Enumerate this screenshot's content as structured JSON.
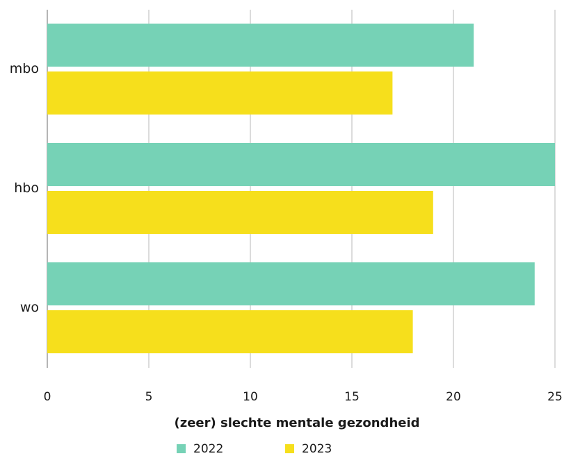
{
  "chart_data": {
    "type": "bar",
    "orientation": "horizontal",
    "categories": [
      "mbo",
      "hbo",
      "wo"
    ],
    "series": [
      {
        "name": "2022",
        "color": "#76d2b6",
        "values": [
          21,
          25,
          24
        ]
      },
      {
        "name": "2023",
        "color": "#f6df1c",
        "values": [
          17,
          19,
          18
        ]
      }
    ],
    "xlabel": "(zeer) slechte mentale gezondheid",
    "xlim": [
      0,
      25
    ],
    "xticks": [
      0,
      5,
      10,
      15,
      20,
      25
    ],
    "grid": true,
    "legend": "bottom-center"
  }
}
